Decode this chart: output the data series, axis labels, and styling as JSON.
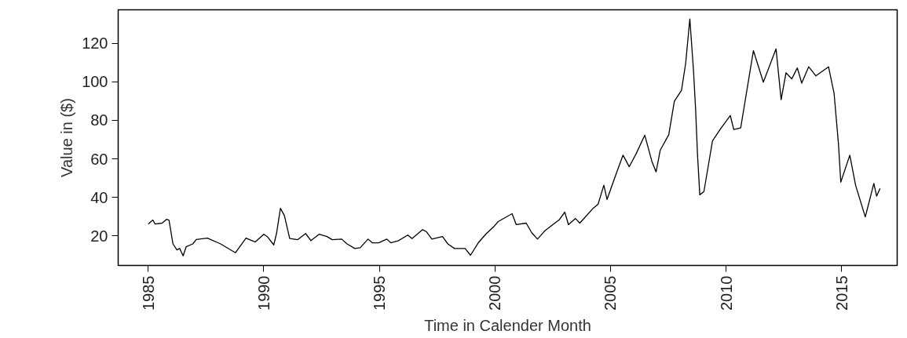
{
  "chart_data": {
    "type": "line",
    "xlabel": "Time in Calender Month",
    "ylabel": "Value in ($)",
    "xlim": [
      1983.7,
      2017.4
    ],
    "ylim": [
      4.6,
      137.4
    ],
    "xticks": [
      1985,
      1990,
      1995,
      2000,
      2005,
      2010,
      2015
    ],
    "yticks": [
      20,
      40,
      60,
      80,
      100,
      120
    ],
    "marker": "none",
    "line_style": "solid",
    "series": [
      {
        "color": "#000000",
        "x": [
          1985.0,
          1985.2,
          1985.3,
          1985.6,
          1985.8,
          1985.9,
          1986.07,
          1986.24,
          1986.36,
          1986.51,
          1986.64,
          1986.93,
          1987.08,
          1987.56,
          1988.13,
          1988.77,
          1989.23,
          1989.63,
          1990.0,
          1990.15,
          1990.43,
          1990.55,
          1990.72,
          1990.89,
          1991.12,
          1991.47,
          1991.81,
          1992.04,
          1992.39,
          1992.73,
          1992.96,
          1993.37,
          1993.6,
          1993.94,
          1994.17,
          1994.51,
          1994.69,
          1994.97,
          1995.32,
          1995.49,
          1995.83,
          1996.23,
          1996.41,
          1996.87,
          1997.04,
          1997.27,
          1997.73,
          1997.96,
          1998.25,
          1998.71,
          1998.94,
          1999.28,
          1999.63,
          1999.97,
          2000.14,
          2000.74,
          2000.92,
          2001.35,
          2001.59,
          2001.84,
          2002.14,
          2002.5,
          2002.77,
          2003.02,
          2003.18,
          2003.48,
          2003.67,
          2004.22,
          2004.46,
          2004.71,
          2004.85,
          2005.19,
          2005.54,
          2005.81,
          2006.11,
          2006.48,
          2006.79,
          2006.97,
          2007.15,
          2007.52,
          2007.76,
          2008.07,
          2008.25,
          2008.43,
          2008.59,
          2008.68,
          2008.76,
          2008.86,
          2009.04,
          2009.41,
          2009.78,
          2010.18,
          2010.33,
          2010.63,
          2011.18,
          2011.61,
          2012.16,
          2012.38,
          2012.59,
          2012.84,
          2013.08,
          2013.27,
          2013.57,
          2013.88,
          2014.43,
          2014.67,
          2014.86,
          2014.96,
          2015.35,
          2015.6,
          2016.02,
          2016.39,
          2016.51,
          2016.66
        ],
        "values": [
          26.1,
          28.2,
          26.1,
          26.6,
          28.6,
          28.1,
          15.8,
          12.7,
          13.4,
          9.6,
          14.3,
          15.8,
          18.1,
          18.8,
          15.8,
          11.2,
          18.8,
          16.8,
          20.8,
          19.6,
          15.3,
          21.2,
          34.3,
          30.5,
          18.6,
          18.0,
          21.2,
          17.5,
          20.8,
          19.6,
          18.0,
          18.3,
          15.8,
          13.4,
          13.8,
          18.3,
          16.4,
          16.4,
          18.3,
          16.4,
          17.5,
          20.4,
          18.6,
          23.2,
          22.1,
          18.3,
          19.6,
          15.8,
          13.4,
          13.4,
          9.9,
          16.4,
          21.2,
          25.0,
          27.4,
          31.5,
          25.8,
          26.6,
          21.6,
          18.3,
          22.4,
          25.8,
          28.2,
          32.3,
          25.8,
          29.0,
          26.6,
          34.0,
          36.4,
          46.3,
          38.9,
          50.4,
          61.9,
          55.9,
          62.7,
          72.3,
          58.6,
          53.2,
          64.5,
          72.6,
          89.9,
          95.6,
          109.6,
          132.7,
          105.5,
          85.8,
          62.7,
          41.3,
          43.0,
          69.3,
          75.9,
          82.5,
          75.2,
          76.0,
          116.2,
          99.8,
          117.1,
          90.7,
          104.7,
          101.5,
          107.2,
          99.3,
          107.8,
          103.1,
          107.8,
          94.0,
          67.7,
          47.9,
          61.9,
          46.3,
          29.8,
          47.2,
          40.6,
          44.6
        ]
      }
    ]
  }
}
